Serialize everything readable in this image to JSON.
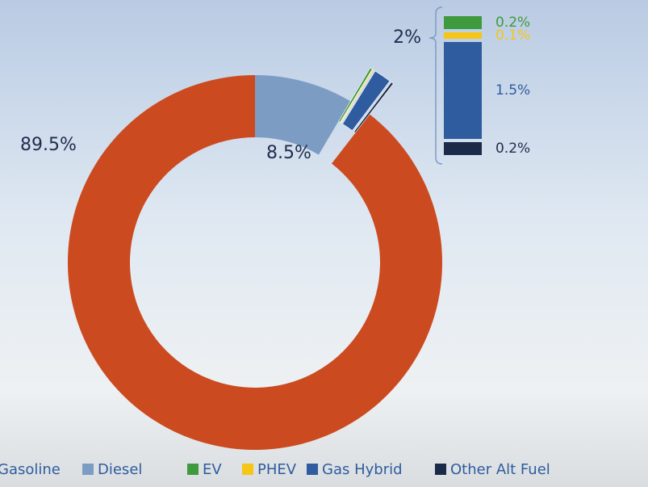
{
  "chart_data": {
    "type": "donut",
    "series": [
      {
        "name": "Gasoline",
        "color": "#cc4a1f",
        "values": [
          89.5
        ],
        "value_labels": [
          "89.5%"
        ]
      },
      {
        "name": "Diesel",
        "color": "#7d9cc4",
        "values": [
          8.5
        ],
        "value_labels": [
          "8.5%"
        ]
      },
      {
        "name": "EV",
        "color": "#3f9a3e",
        "values": [
          0.2
        ],
        "value_labels": [
          "0.2%"
        ],
        "exploded": true
      },
      {
        "name": "PHEV",
        "color": "#f5c518",
        "values": [
          0.1
        ],
        "value_labels": [
          "0.1%"
        ],
        "exploded": true
      },
      {
        "name": "Gas Hybrid",
        "color": "#2f5c9e",
        "values": [
          1.5
        ],
        "value_labels": [
          "1.5%"
        ],
        "exploded": true
      },
      {
        "name": "Other Alt Fuel",
        "color": "#1b2a48",
        "values": [
          0.2
        ],
        "value_labels": [
          "0.2%"
        ],
        "exploded": true
      }
    ],
    "breakout": {
      "value": 2,
      "label": "2%"
    },
    "legend": "bottom"
  }
}
